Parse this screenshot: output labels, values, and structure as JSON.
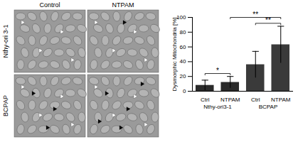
{
  "figure": {
    "columns": [
      "Control",
      "NTPAM"
    ],
    "rows": [
      "Nthy-ori 3-1",
      "BCPAP"
    ]
  },
  "chart_data": {
    "type": "bar",
    "categories": [
      "Ctrl",
      "NTPAM",
      "Ctrl",
      "NTPAM"
    ],
    "groups": [
      {
        "label": "Nthy-ori3-1",
        "span": [
          0,
          1
        ]
      },
      {
        "label": "BCPAP",
        "span": [
          2,
          3
        ]
      }
    ],
    "values": [
      8,
      12,
      36,
      63
    ],
    "errors": [
      7,
      8,
      18,
      25
    ],
    "colors": [
      "#2a2a2a",
      "#2a2a2a",
      "#3a3a3a",
      "#3a3a3a"
    ],
    "y_label": "Dysmorphic Mitochondria [%]",
    "ylim": [
      0,
      100
    ],
    "yticks": [
      0,
      20,
      40,
      60,
      80,
      100
    ],
    "significance": [
      {
        "between": [
          0,
          1
        ],
        "label": "*"
      },
      {
        "between": [
          2,
          3
        ],
        "label": "**"
      },
      {
        "between": [
          1,
          3
        ],
        "label": "**"
      }
    ]
  }
}
